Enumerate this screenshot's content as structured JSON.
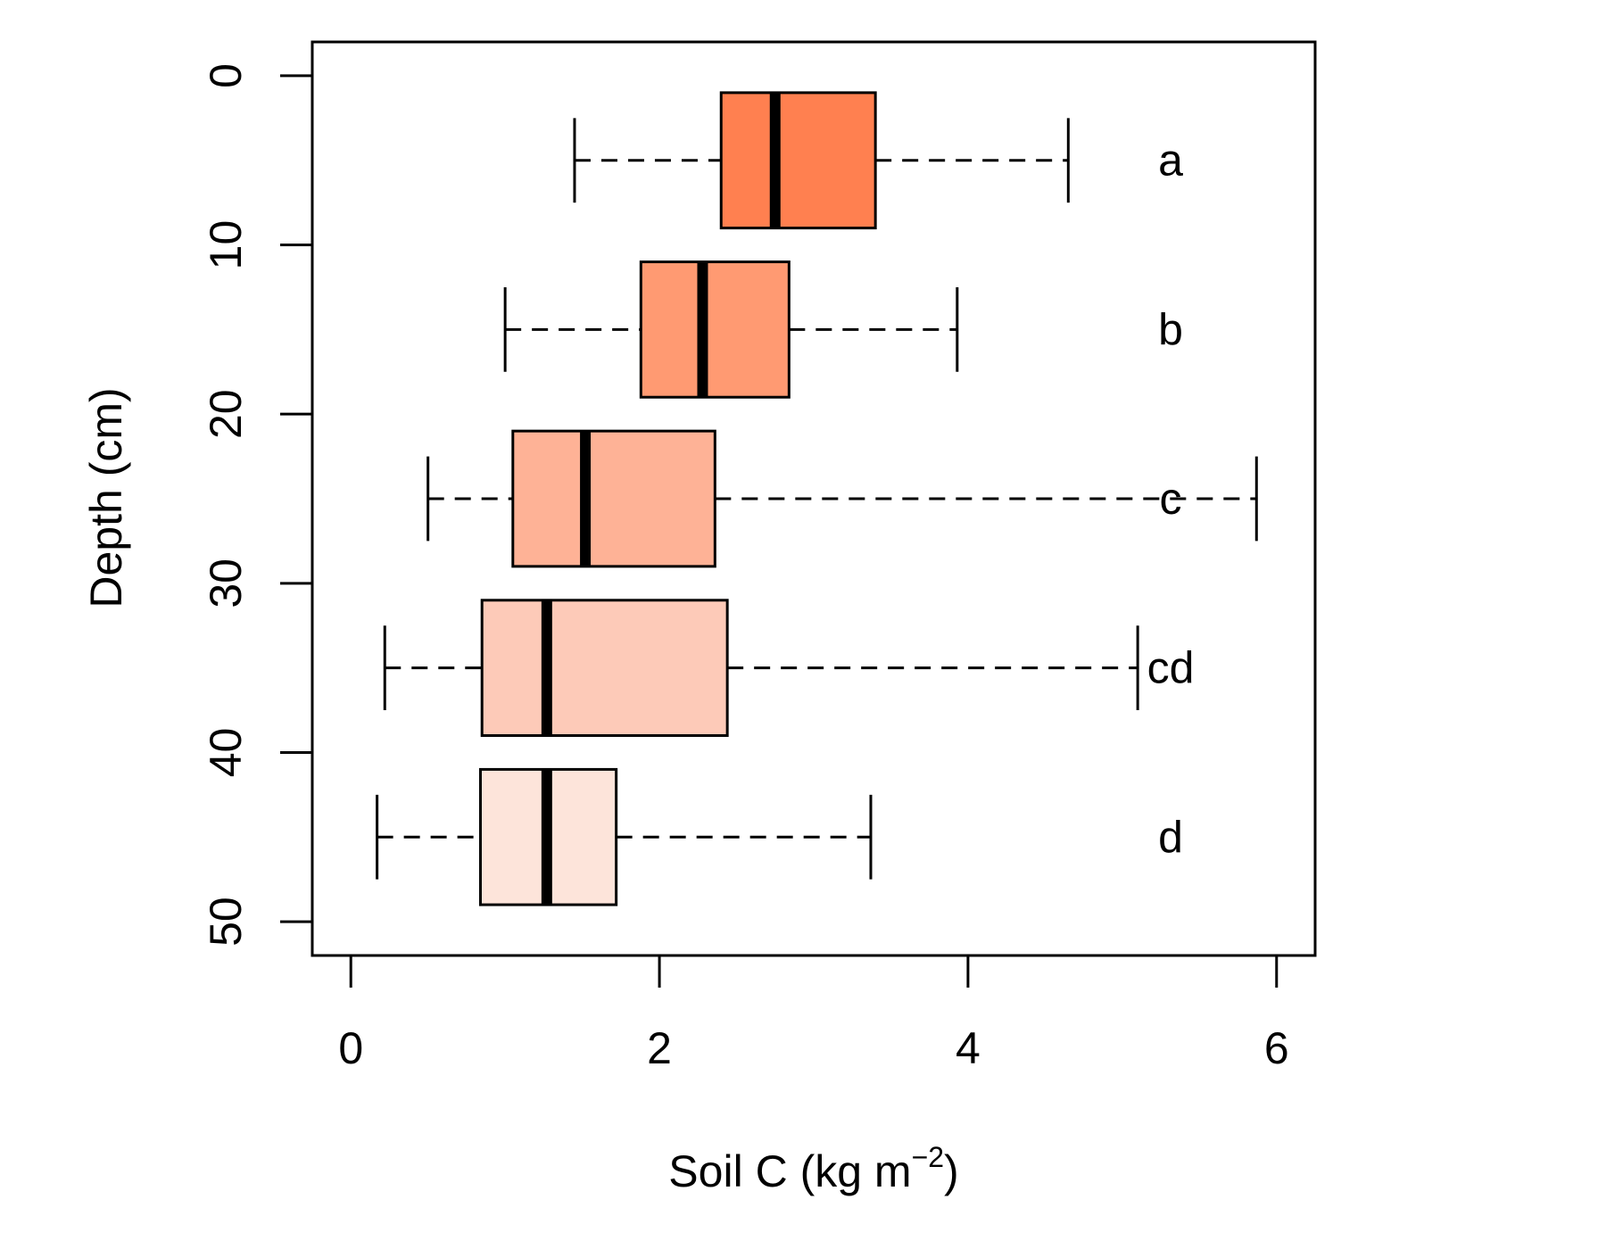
{
  "chart_data": {
    "type": "boxplot",
    "orientation": "horizontal",
    "xlabel": {
      "main": "Soil C (kg m",
      "sup": "−2",
      "close": ")"
    },
    "ylabel": "Depth (cm)",
    "xlim": [
      -0.25,
      6.25
    ],
    "ylim": [
      52,
      -2
    ],
    "x_ticks": [
      "0",
      "2",
      "4",
      "6"
    ],
    "y_ticks": [
      "0",
      "10",
      "20",
      "30",
      "40",
      "50"
    ],
    "y_reversed": true,
    "grid": false,
    "boxes": [
      {
        "label": "a",
        "depth": 5,
        "whisker_low": 1.45,
        "q1": 2.4,
        "median": 2.75,
        "q3": 3.4,
        "whisker_high": 4.65,
        "color": "#FF8050"
      },
      {
        "label": "b",
        "depth": 15,
        "whisker_low": 1.0,
        "q1": 1.88,
        "median": 2.28,
        "q3": 2.84,
        "whisker_high": 3.93,
        "color": "#FF9A72"
      },
      {
        "label": "c",
        "depth": 25,
        "whisker_low": 0.5,
        "q1": 1.05,
        "median": 1.52,
        "q3": 2.36,
        "whisker_high": 5.87,
        "color": "#FEB296"
      },
      {
        "label": "cd",
        "depth": 35,
        "whisker_low": 0.22,
        "q1": 0.85,
        "median": 1.27,
        "q3": 2.44,
        "whisker_high": 5.1,
        "color": "#FDCAB8"
      },
      {
        "label": "d",
        "depth": 45,
        "whisker_low": 0.17,
        "q1": 0.84,
        "median": 1.27,
        "q3": 1.72,
        "whisker_high": 3.37,
        "color": "#FDE4DA"
      }
    ]
  }
}
